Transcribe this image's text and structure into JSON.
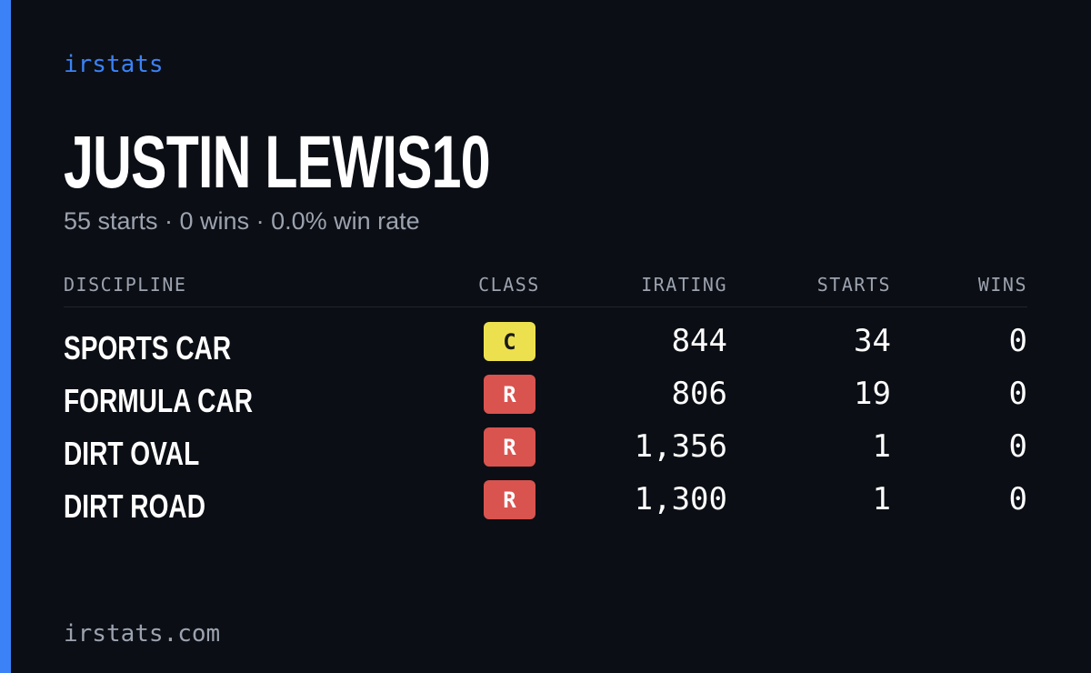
{
  "header": {
    "brand": "irstats"
  },
  "profile": {
    "name": "JUSTIN LEWIS10",
    "summary": "55 starts · 0 wins · 0.0% win rate"
  },
  "table": {
    "columns": [
      "DISCIPLINE",
      "CLASS",
      "IRATING",
      "STARTS",
      "WINS"
    ],
    "rows": [
      {
        "discipline": "SPORTS CAR",
        "class": "C",
        "class_color": "#ede04f",
        "class_text_color": "#1a1a1a",
        "irating": "844",
        "starts": "34",
        "wins": "0"
      },
      {
        "discipline": "FORMULA CAR",
        "class": "R",
        "class_color": "#d9534f",
        "class_text_color": "#ffffff",
        "irating": "806",
        "starts": "19",
        "wins": "0"
      },
      {
        "discipline": "DIRT OVAL",
        "class": "R",
        "class_color": "#d9534f",
        "class_text_color": "#ffffff",
        "irating": "1,356",
        "starts": "1",
        "wins": "0"
      },
      {
        "discipline": "DIRT ROAD",
        "class": "R",
        "class_color": "#d9534f",
        "class_text_color": "#ffffff",
        "irating": "1,300",
        "starts": "1",
        "wins": "0"
      }
    ]
  },
  "footer": {
    "site": "irstats.com"
  }
}
